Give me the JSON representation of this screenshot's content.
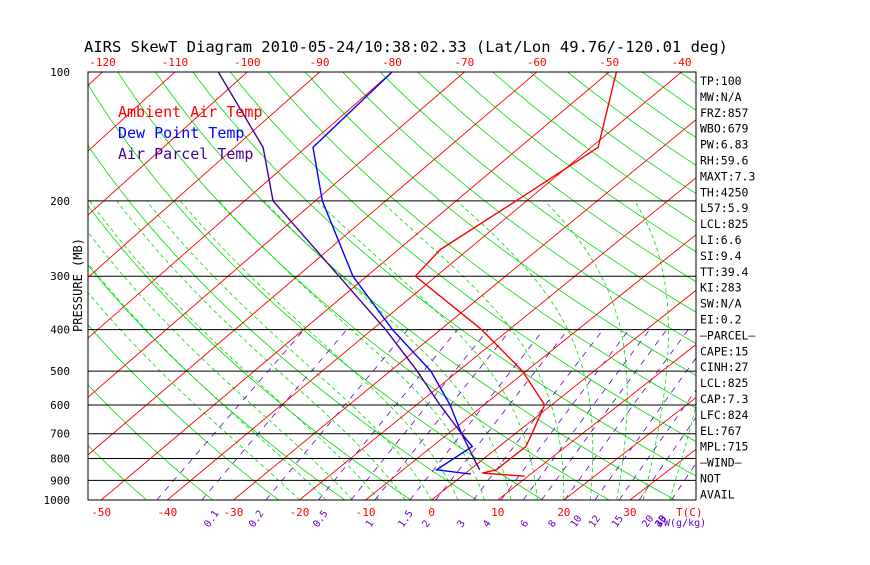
{
  "chart_data": {
    "type": "line",
    "title": "AIRS SkewT Diagram 2010-05-24/10:38:02.33 (Lat/Lon 49.76/-120.01 deg)",
    "ylabel": "PRESSURE (MB)",
    "x_unit_label": "T(C)",
    "mixing_ratio_unit_label": "W(g/kg)",
    "y_scale": "log",
    "ylim": [
      1000,
      100
    ],
    "xlim_bottom": [
      -52,
      40
    ],
    "xlim_top": [
      -122,
      -38
    ],
    "top_ticks": [
      -120,
      -110,
      -100,
      -90,
      -80,
      -70,
      -60,
      -50,
      -40
    ],
    "bottom_ticks": [
      -50,
      -40,
      -30,
      -20,
      -10,
      0,
      10,
      20,
      30
    ],
    "bottom_tick_labels": [
      "-50",
      "-40",
      "-30",
      "-20",
      "-10",
      "0",
      "10",
      "20",
      "30"
    ],
    "pressure_ticks": [
      100,
      200,
      300,
      400,
      500,
      600,
      700,
      800,
      900,
      1000
    ],
    "mixing_ratio_labels": [
      "0.1",
      "0.2",
      "0.5",
      "1",
      "1.5",
      "2",
      "3",
      "4",
      "6",
      "8",
      "10",
      "12",
      "15",
      "20",
      "25",
      "30",
      "40"
    ],
    "grid": true,
    "legend_position": "top-left",
    "series": [
      {
        "name": "Ambient Air Temp",
        "color": "#ff0000",
        "points": [
          [
            1000,
            null
          ],
          [
            880,
            9.5
          ],
          [
            865,
            2.5
          ],
          [
            850,
            4.0
          ],
          [
            800,
            4.0
          ],
          [
            750,
            4.0
          ],
          [
            700,
            2.5
          ],
          [
            600,
            -1.0
          ],
          [
            500,
            -10.5
          ],
          [
            400,
            -24.0
          ],
          [
            300,
            -43.0
          ],
          [
            260,
            -44.0
          ],
          [
            200,
            -41.5
          ],
          [
            150,
            -39.0
          ],
          [
            100,
            -49.0
          ]
        ]
      },
      {
        "name": "Dew Point Temp",
        "color": "#0000ff",
        "points": [
          [
            870,
            1.0
          ],
          [
            850,
            -5.0
          ],
          [
            750,
            -4.0
          ],
          [
            700,
            -8.0
          ],
          [
            600,
            -15.0
          ],
          [
            500,
            -24.0
          ],
          [
            400,
            -37.0
          ],
          [
            300,
            -52.0
          ],
          [
            200,
            -69.0
          ],
          [
            150,
            -79.0
          ],
          [
            100,
            -80.0
          ]
        ]
      },
      {
        "name": "Air Parcel Temp",
        "color": "#440099",
        "points": [
          [
            850,
            1.5
          ],
          [
            800,
            -1.5
          ],
          [
            700,
            -8.0
          ],
          [
            600,
            -16.5
          ],
          [
            500,
            -26.0
          ],
          [
            400,
            -38.0
          ],
          [
            300,
            -54.0
          ],
          [
            200,
            -76.0
          ],
          [
            150,
            -86.0
          ],
          [
            100,
            -104.0
          ]
        ]
      }
    ],
    "side_panel": [
      "TP:100",
      "MW:N/A",
      "FRZ:857",
      "WBO:679",
      "PW:6.83",
      "RH:59.6",
      "MAXT:7.3",
      "TH:4250",
      "L57:5.9",
      "LCL:825",
      "LI:6.6",
      "SI:9.4",
      "TT:39.4",
      "KI:283",
      "SW:N/A",
      "EI:0.2",
      "—PARCEL—",
      "CAPE:15",
      "CINH:27",
      "LCL:825",
      "CAP:7.3",
      "LFC:824",
      "EL:767",
      "MPL:715",
      "—WIND—",
      "NOT",
      "AVAIL"
    ],
    "colors": {
      "grid_pressure": "#000000",
      "isotherm": "#ff0000",
      "dry_adiabat": "#00dd00",
      "moist_adiabat": "#00dd00",
      "mixing_ratio": "#6600cc",
      "axis_text": "#000000",
      "tick_text": "#ff0000",
      "mixing_text": "#6600cc"
    }
  }
}
